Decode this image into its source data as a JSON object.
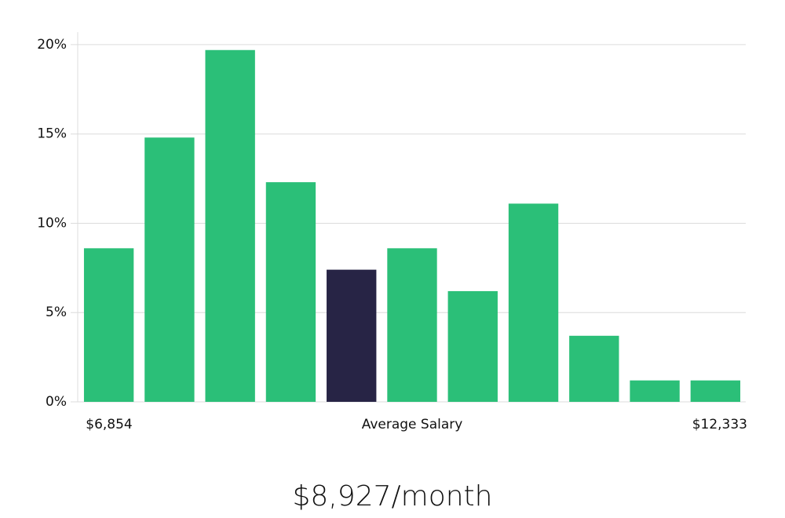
{
  "chart_data": {
    "type": "bar",
    "categories": [
      null,
      null,
      null,
      null,
      null,
      null,
      null,
      null,
      null,
      null,
      null
    ],
    "values": [
      8.6,
      14.8,
      19.7,
      12.3,
      7.4,
      8.6,
      6.2,
      11.1,
      3.7,
      1.2,
      1.2
    ],
    "colors": [
      "#2bbf78",
      "#2bbf78",
      "#2bbf78",
      "#2bbf78",
      "#272445",
      "#2bbf78",
      "#2bbf78",
      "#2bbf78",
      "#2bbf78",
      "#2bbf78",
      "#2bbf78"
    ],
    "ylim": [
      0,
      20.7
    ],
    "yticks": [
      {
        "value": 0,
        "label": "0%"
      },
      {
        "value": 5,
        "label": "5%"
      },
      {
        "value": 10,
        "label": "10%"
      },
      {
        "value": 15,
        "label": "15%"
      },
      {
        "value": 20,
        "label": "20%"
      }
    ],
    "grid": true,
    "x_min_label": "$6,854",
    "xlabel": "Average Salary",
    "x_max_label": "$12,333",
    "caption": "$8,927/month"
  }
}
